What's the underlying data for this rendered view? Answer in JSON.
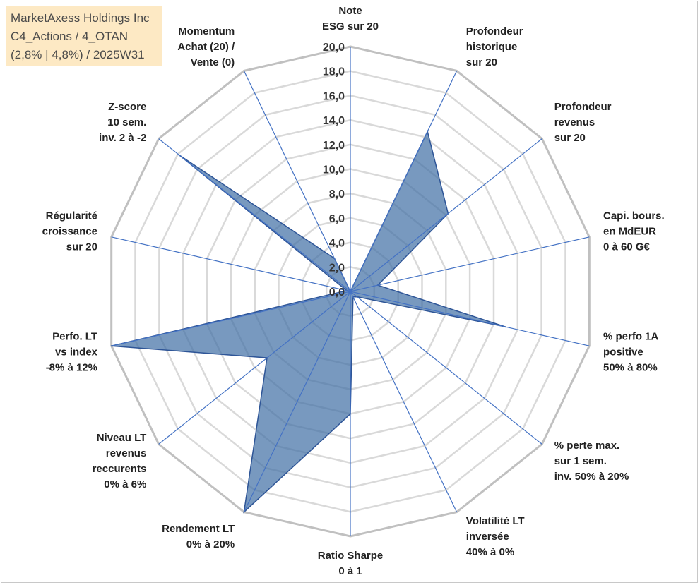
{
  "chart_data": {
    "type": "radar",
    "title": [
      "MarketAxess Holdings Inc",
      "C4_Actions / 4_OTAN",
      "(2,8% | 4,8%) / 2025W31"
    ],
    "axes": [
      [
        "Note",
        "ESG sur 20"
      ],
      [
        "Profondeur",
        "historique",
        "sur 20"
      ],
      [
        "Profondeur",
        "revenus",
        "sur 20"
      ],
      [
        "Capi. bours.",
        "en MdEUR",
        "0 à 60 G€"
      ],
      [
        "% perfo 1A",
        "positive",
        "50% à 80%"
      ],
      [
        "% perte max.",
        "sur 1 sem.",
        "inv. 50% à 20%"
      ],
      [
        "Volatilité LT",
        "inversée",
        "40% à 0%"
      ],
      [
        "Ratio Sharpe",
        "0 à 1"
      ],
      [
        "Rendement LT",
        "0% à 20%"
      ],
      [
        "Niveau LT",
        "revenus",
        "reccurents",
        "0% à 6%"
      ],
      [
        "Perfo. LT",
        "vs index",
        "-8% à 12%"
      ],
      [
        "Régularité",
        "croissance",
        "sur 20"
      ],
      [
        "Z-score",
        "10 sem.",
        "inv. 2 à -2"
      ],
      [
        "Momentum",
        "Achat (20) /",
        "Vente (0)"
      ]
    ],
    "values": [
      0,
      14.5,
      10.2,
      2.3,
      13.0,
      0.7,
      0.5,
      10.0,
      20.0,
      8.7,
      20.0,
      0.3,
      17.9,
      3.0
    ],
    "rlim": [
      0,
      20
    ],
    "ticks": [
      "0,0",
      "2,0",
      "4,0",
      "6,0",
      "8,0",
      "10,0",
      "12,0",
      "14,0",
      "16,0",
      "18,0",
      "20,0"
    ],
    "colors": {
      "fill": "#3f6da4",
      "series_line": "#2e5597",
      "axis_line": "#4472c4",
      "grid_outer": "#c0c0c0",
      "grid_inner": "#d9d9d9",
      "title_bg": "#fde9c4"
    }
  }
}
